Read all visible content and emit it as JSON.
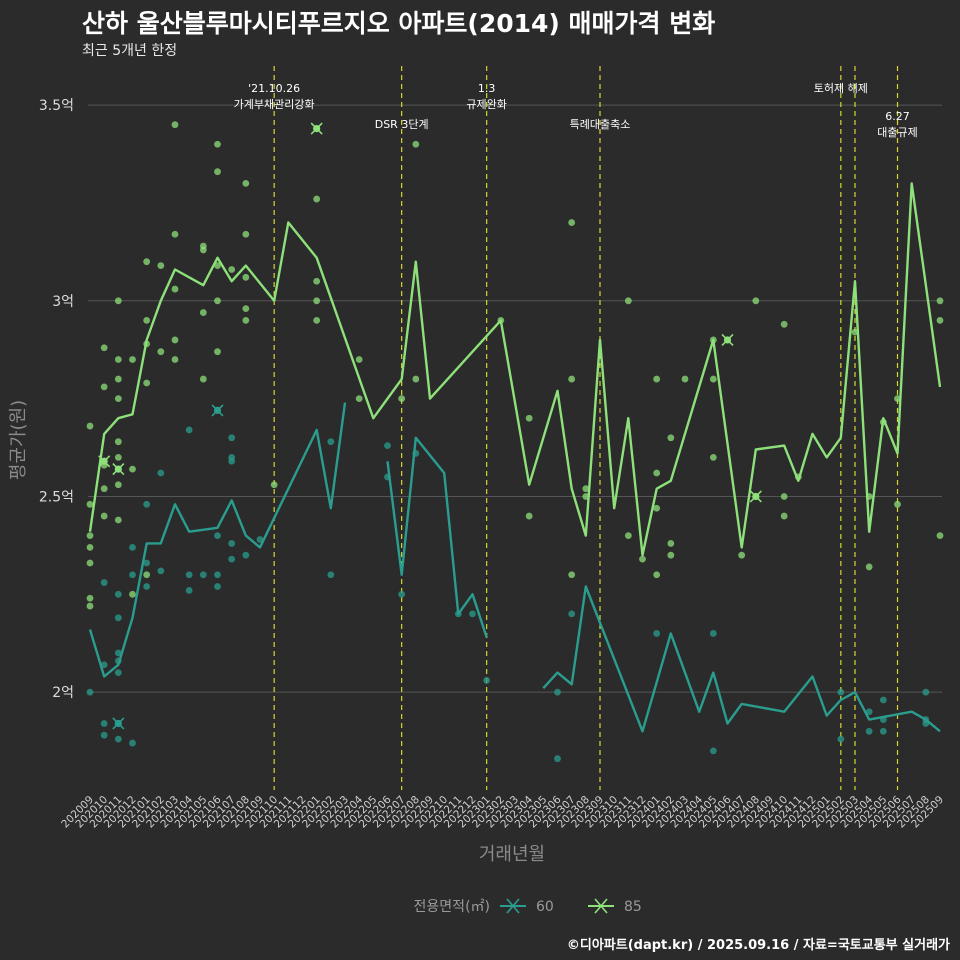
{
  "chart_data": {
    "type": "line",
    "title": "산하 울산블루마시티푸르지오 아파트(2014) 매매가격 변화",
    "subtitle": "최근 5개년 한정",
    "xlabel": "거래년월",
    "ylabel": "평균가(원)",
    "caption": "©디아파트(dapt.kr) / 2025.09.16 / 자료=국토교통부 실거래가",
    "legend_title": "전용면적(㎡)",
    "ylim": [
      1.75,
      3.6
    ],
    "y_ticks": [
      {
        "value": 2.0,
        "label": "2억"
      },
      {
        "value": 2.5,
        "label": "2.5억"
      },
      {
        "value": 3.0,
        "label": "3억"
      },
      {
        "value": 3.5,
        "label": "3.5억"
      }
    ],
    "x_labels": [
      "202009",
      "202010",
      "202011",
      "202012",
      "202101",
      "202102",
      "202103",
      "202104",
      "202105",
      "202106",
      "202107",
      "202108",
      "202109",
      "202110",
      "202111",
      "202112",
      "202201",
      "202202",
      "202203",
      "202204",
      "202205",
      "202206",
      "202207",
      "202208",
      "202209",
      "202210",
      "202211",
      "202212",
      "202301",
      "202302",
      "202303",
      "202304",
      "202305",
      "202306",
      "202307",
      "202308",
      "202309",
      "202310",
      "202311",
      "202312",
      "202401",
      "202402",
      "202403",
      "202404",
      "202405",
      "202406",
      "202407",
      "202408",
      "202409",
      "202410",
      "202411",
      "202412",
      "202501",
      "202502",
      "202503",
      "202504",
      "202505",
      "202506",
      "202507",
      "202508",
      "202509"
    ],
    "events": [
      {
        "x": "202110",
        "label": "'21.10.26\n가계부채관리강화",
        "level": 0
      },
      {
        "x": "202207",
        "label": "DSR 3단계",
        "level": 1
      },
      {
        "x": "202301",
        "label": "1.3\n규제완화",
        "level": 0
      },
      {
        "x": "202309",
        "label": "특례대출축소",
        "level": 1
      },
      {
        "x": "202502",
        "label": "토허제 해제",
        "level": 0
      },
      {
        "x": "202503",
        "label": "",
        "level": 0
      },
      {
        "x": "202506",
        "label": "6.27\n대출규제",
        "level": 2
      }
    ],
    "series": [
      {
        "name": "60",
        "color": "#2a9d8f",
        "line": [
          [
            "202009",
            2.16
          ],
          [
            "202010",
            2.04
          ],
          [
            "202011",
            2.07
          ],
          [
            "202012",
            2.19
          ],
          [
            "202101",
            2.38
          ],
          [
            "202102",
            2.38
          ],
          [
            "202103",
            2.48
          ],
          [
            "202104",
            2.41
          ],
          [
            "202106",
            2.42
          ],
          [
            "202107",
            2.49
          ],
          [
            "202108",
            2.4
          ],
          [
            "202109",
            2.37
          ],
          [
            "202201",
            2.67
          ],
          [
            "202202",
            2.47
          ],
          [
            "202203",
            2.74
          ],
          null,
          [
            "202206",
            2.59
          ],
          [
            "202207",
            2.3
          ],
          [
            "202208",
            2.65
          ],
          [
            "202210",
            2.56
          ],
          [
            "202211",
            2.2
          ],
          [
            "202212",
            2.25
          ],
          [
            "202301",
            2.14
          ],
          null,
          [
            "202305",
            2.01
          ],
          [
            "202306",
            2.05
          ],
          [
            "202307",
            2.02
          ],
          [
            "202308",
            2.27
          ],
          [
            "202312",
            1.9
          ],
          [
            "202402",
            2.15
          ],
          [
            "202404",
            1.95
          ],
          [
            "202405",
            2.05
          ],
          [
            "202406",
            1.92
          ],
          [
            "202407",
            1.97
          ],
          [
            "202410",
            1.95
          ],
          [
            "202412",
            2.04
          ],
          [
            "202501",
            1.94
          ],
          [
            "202502",
            1.98
          ],
          [
            "202503",
            2.0
          ],
          [
            "202504",
            1.93
          ],
          [
            "202507",
            1.95
          ],
          [
            "202508",
            1.93
          ],
          [
            "202509",
            1.9
          ]
        ],
        "points": [
          [
            "202009",
            2.0
          ],
          [
            "202010",
            1.92
          ],
          [
            "202010",
            1.89
          ],
          [
            "202010",
            2.07
          ],
          [
            "202010",
            2.28
          ],
          [
            "202011",
            2.05
          ],
          [
            "202011",
            2.08
          ],
          [
            "202011",
            2.1
          ],
          [
            "202011",
            2.19
          ],
          [
            "202011",
            2.25
          ],
          [
            "202011",
            1.88
          ],
          [
            "202012",
            1.87
          ],
          [
            "202012",
            2.3
          ],
          [
            "202012",
            2.37
          ],
          [
            "202101",
            2.27
          ],
          [
            "202101",
            2.33
          ],
          [
            "202101",
            2.48
          ],
          [
            "202102",
            2.31
          ],
          [
            "202102",
            2.56
          ],
          [
            "202104",
            2.26
          ],
          [
            "202104",
            2.3
          ],
          [
            "202104",
            2.67
          ],
          [
            "202105",
            2.3
          ],
          [
            "202106",
            2.27
          ],
          [
            "202106",
            2.3
          ],
          [
            "202106",
            2.4
          ],
          [
            "202107",
            2.34
          ],
          [
            "202107",
            2.38
          ],
          [
            "202107",
            2.59
          ],
          [
            "202107",
            2.6
          ],
          [
            "202107",
            2.65
          ],
          [
            "202108",
            2.35
          ],
          [
            "202109",
            2.39
          ],
          [
            "202202",
            2.64
          ],
          [
            "202202",
            2.3
          ],
          [
            "202206",
            2.63
          ],
          [
            "202206",
            2.55
          ],
          [
            "202207",
            2.25
          ],
          [
            "202208",
            2.61
          ],
          [
            "202211",
            2.2
          ],
          [
            "202212",
            2.2
          ],
          [
            "202301",
            2.03
          ],
          [
            "202306",
            2.0
          ],
          [
            "202306",
            1.83
          ],
          [
            "202307",
            2.2
          ],
          [
            "202401",
            2.15
          ],
          [
            "202405",
            2.15
          ],
          [
            "202405",
            1.85
          ],
          [
            "202502",
            2.0
          ],
          [
            "202502",
            1.88
          ],
          [
            "202504",
            1.95
          ],
          [
            "202504",
            1.9
          ],
          [
            "202505",
            1.93
          ],
          [
            "202505",
            1.98
          ],
          [
            "202505",
            1.9
          ],
          [
            "202508",
            1.92
          ],
          [
            "202508",
            1.93
          ],
          [
            "202508",
            2.0
          ]
        ],
        "crosses": [
          [
            "202011",
            1.92
          ],
          [
            "202106",
            2.72
          ]
        ]
      },
      {
        "name": "85",
        "color": "#8ee07a",
        "line": [
          [
            "202009",
            2.41
          ],
          [
            "202010",
            2.66
          ],
          [
            "202011",
            2.7
          ],
          [
            "202012",
            2.71
          ],
          [
            "202101",
            2.9
          ],
          [
            "202102",
            3.0
          ],
          [
            "202103",
            3.08
          ],
          [
            "202105",
            3.04
          ],
          [
            "202106",
            3.11
          ],
          [
            "202107",
            3.05
          ],
          [
            "202108",
            3.09
          ],
          [
            "202110",
            3.0
          ],
          [
            "202111",
            3.2
          ],
          [
            "202201",
            3.11
          ],
          [
            "202205",
            2.7
          ],
          [
            "202207",
            2.8
          ],
          [
            "202208",
            3.1
          ],
          [
            "202209",
            2.75
          ],
          [
            "202302",
            2.95
          ],
          [
            "202304",
            2.53
          ],
          [
            "202306",
            2.77
          ],
          [
            "202307",
            2.52
          ],
          [
            "202308",
            2.4
          ],
          [
            "202309",
            2.9
          ],
          [
            "202310",
            2.47
          ],
          [
            "202311",
            2.7
          ],
          [
            "202312",
            2.35
          ],
          [
            "202401",
            2.52
          ],
          [
            "202402",
            2.54
          ],
          [
            "202405",
            2.9
          ],
          [
            "202407",
            2.37
          ],
          [
            "202408",
            2.62
          ],
          [
            "202410",
            2.63
          ],
          [
            "202411",
            2.54
          ],
          [
            "202412",
            2.66
          ],
          [
            "202501",
            2.6
          ],
          [
            "202502",
            2.65
          ],
          [
            "202503",
            3.05
          ],
          [
            "202504",
            2.41
          ],
          [
            "202505",
            2.7
          ],
          [
            "202506",
            2.61
          ],
          [
            "202507",
            3.3
          ],
          [
            "202509",
            2.78
          ]
        ],
        "points": [
          [
            "202009",
            2.68
          ],
          [
            "202009",
            2.48
          ],
          [
            "202009",
            2.4
          ],
          [
            "202009",
            2.37
          ],
          [
            "202009",
            2.33
          ],
          [
            "202009",
            2.24
          ],
          [
            "202009",
            2.22
          ],
          [
            "202010",
            2.88
          ],
          [
            "202010",
            2.78
          ],
          [
            "202010",
            2.58
          ],
          [
            "202010",
            2.52
          ],
          [
            "202010",
            2.45
          ],
          [
            "202011",
            3.0
          ],
          [
            "202011",
            2.85
          ],
          [
            "202011",
            2.8
          ],
          [
            "202011",
            2.75
          ],
          [
            "202011",
            2.64
          ],
          [
            "202011",
            2.6
          ],
          [
            "202011",
            2.53
          ],
          [
            "202011",
            2.44
          ],
          [
            "202012",
            2.85
          ],
          [
            "202012",
            2.57
          ],
          [
            "202012",
            2.25
          ],
          [
            "202101",
            3.1
          ],
          [
            "202101",
            2.95
          ],
          [
            "202101",
            2.89
          ],
          [
            "202101",
            2.79
          ],
          [
            "202101",
            2.3
          ],
          [
            "202102",
            3.09
          ],
          [
            "202102",
            2.87
          ],
          [
            "202103",
            3.45
          ],
          [
            "202103",
            3.17
          ],
          [
            "202103",
            3.03
          ],
          [
            "202103",
            2.9
          ],
          [
            "202103",
            2.85
          ],
          [
            "202105",
            3.14
          ],
          [
            "202105",
            3.13
          ],
          [
            "202105",
            2.97
          ],
          [
            "202105",
            2.8
          ],
          [
            "202106",
            3.4
          ],
          [
            "202106",
            3.33
          ],
          [
            "202106",
            3.09
          ],
          [
            "202106",
            3.0
          ],
          [
            "202106",
            2.87
          ],
          [
            "202107",
            3.08
          ],
          [
            "202108",
            3.17
          ],
          [
            "202108",
            3.06
          ],
          [
            "202108",
            2.98
          ],
          [
            "202108",
            2.95
          ],
          [
            "202108",
            3.3
          ],
          [
            "202110",
            2.53
          ],
          [
            "202201",
            3.26
          ],
          [
            "202201",
            3.05
          ],
          [
            "202201",
            3.0
          ],
          [
            "202201",
            2.95
          ],
          [
            "202204",
            2.85
          ],
          [
            "202204",
            2.75
          ],
          [
            "202207",
            2.75
          ],
          [
            "202208",
            3.4
          ],
          [
            "202208",
            2.8
          ],
          [
            "202302",
            2.95
          ],
          [
            "202304",
            2.7
          ],
          [
            "202304",
            2.45
          ],
          [
            "202307",
            3.2
          ],
          [
            "202307",
            2.8
          ],
          [
            "202307",
            2.3
          ],
          [
            "202308",
            2.52
          ],
          [
            "202308",
            2.5
          ],
          [
            "202311",
            3.0
          ],
          [
            "202311",
            2.4
          ],
          [
            "202312",
            2.34
          ],
          [
            "202401",
            2.56
          ],
          [
            "202401",
            2.47
          ],
          [
            "202401",
            2.3
          ],
          [
            "202401",
            2.8
          ],
          [
            "202402",
            2.65
          ],
          [
            "202402",
            2.38
          ],
          [
            "202402",
            2.35
          ],
          [
            "202403",
            2.8
          ],
          [
            "202405",
            2.9
          ],
          [
            "202405",
            2.8
          ],
          [
            "202405",
            2.6
          ],
          [
            "202407",
            2.35
          ],
          [
            "202408",
            3.0
          ],
          [
            "202408",
            2.5
          ],
          [
            "202410",
            2.94
          ],
          [
            "202410",
            2.5
          ],
          [
            "202410",
            2.45
          ],
          [
            "202411",
            2.55
          ],
          [
            "202503",
            2.92
          ],
          [
            "202504",
            2.5
          ],
          [
            "202504",
            2.32
          ],
          [
            "202505",
            2.69
          ],
          [
            "202506",
            2.75
          ],
          [
            "202506",
            2.48
          ],
          [
            "202509",
            3.0
          ],
          [
            "202509",
            2.95
          ],
          [
            "202509",
            2.4
          ]
        ],
        "crosses": [
          [
            "202010",
            2.59
          ],
          [
            "202011",
            2.57
          ],
          [
            "202201",
            3.44
          ],
          [
            "202406",
            2.9
          ],
          [
            "202408",
            2.5
          ]
        ]
      }
    ]
  }
}
